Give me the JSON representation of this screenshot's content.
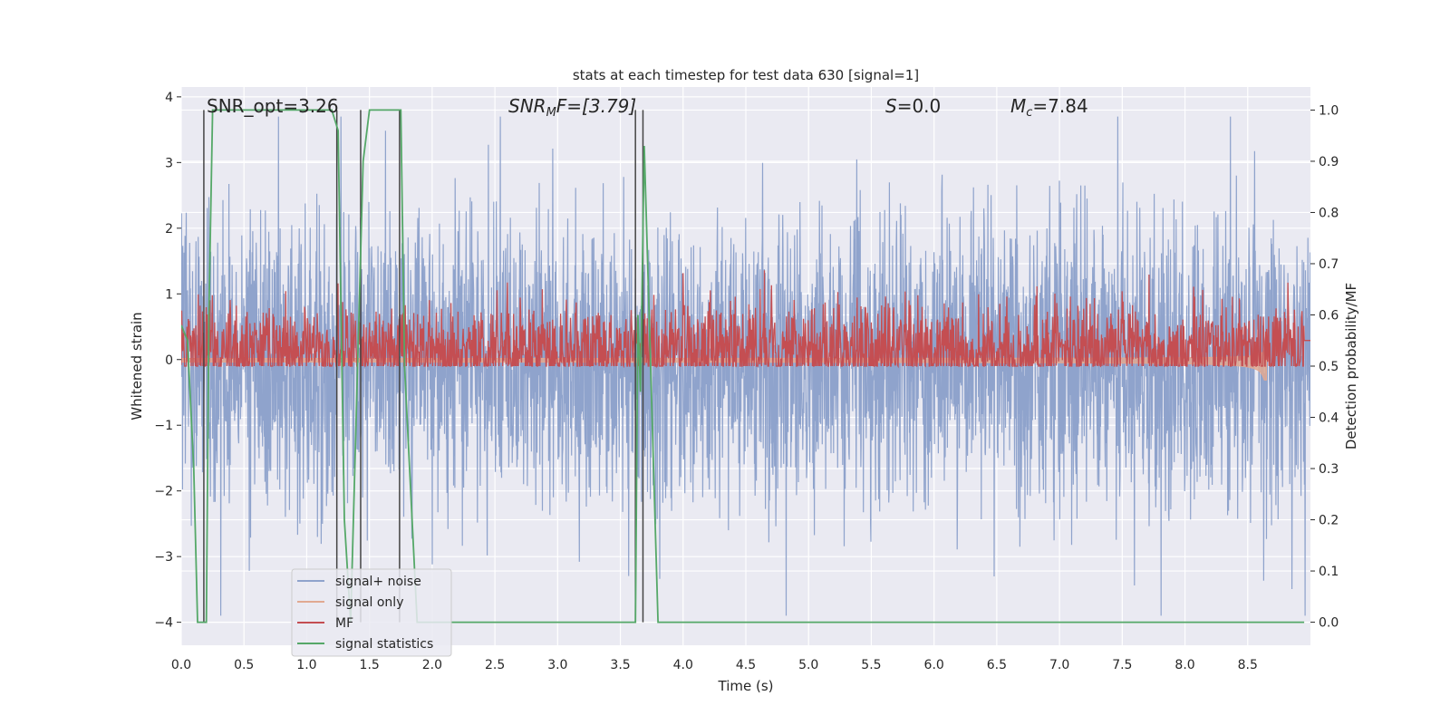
{
  "chart_data": {
    "type": "line",
    "title": "stats at each timestep for test data 630 [signal=1]",
    "xlabel": "Time (s)",
    "ylabel": "Whitened strain",
    "y2label": "Detection probability/MF",
    "xlim": [
      0.0,
      9.0
    ],
    "ylim": [
      -4.35,
      4.15
    ],
    "y2lim": [
      -0.045,
      1.045
    ],
    "xticks": [
      "0.0",
      "0.5",
      "1.0",
      "1.5",
      "2.0",
      "2.5",
      "3.0",
      "3.5",
      "4.0",
      "4.5",
      "5.0",
      "5.5",
      "6.0",
      "6.5",
      "7.0",
      "7.5",
      "8.0",
      "8.5"
    ],
    "yticks": [
      "4",
      "3",
      "2",
      "1",
      "0",
      "−1",
      "−2",
      "−3",
      "−4"
    ],
    "y2ticks": [
      "1.0",
      "0.9",
      "0.8",
      "0.7",
      "0.6",
      "0.5",
      "0.4",
      "0.3",
      "0.2",
      "0.1",
      "0.0"
    ],
    "grid": true,
    "legend_position": "lower-left",
    "annotations": {
      "snr_opt": "SNR_opt=3.26",
      "snr_mf_base": "SNR",
      "snr_mf_sub": "M",
      "snr_mf_rest": "F=[3.79]",
      "s_italic": "S",
      "s_rest": "=0.0",
      "mc_base": "M",
      "mc_sub": "c",
      "mc_rest": "=7.84"
    },
    "series": [
      {
        "name": "signal+ noise",
        "color": "#8fa3cc",
        "envelope_typical": [
          -1.6,
          1.6
        ],
        "extremes": [
          -3.9,
          3.7
        ]
      },
      {
        "name": "signal only",
        "color": "#e1a992",
        "peak_time": 8.65,
        "peak_amplitude": 0.45
      },
      {
        "name": "MF",
        "color": "#c44e52",
        "range": [
          0.0,
          0.9
        ]
      },
      {
        "name": "signal statistics",
        "color": "#55a868",
        "x": [
          0.0,
          0.05,
          0.1,
          0.13,
          0.2,
          0.22,
          0.25,
          1.2,
          1.25,
          1.3,
          1.35,
          1.45,
          1.5,
          1.75,
          1.78,
          1.88,
          3.62,
          3.64,
          3.66,
          3.69,
          3.8,
          8.95
        ],
        "y": [
          0.58,
          0.55,
          0.3,
          0.0,
          0.0,
          0.6,
          1.0,
          1.0,
          0.96,
          0.2,
          0.0,
          0.9,
          1.0,
          1.0,
          0.5,
          0.0,
          0.0,
          0.6,
          0.45,
          0.93,
          0.0,
          0.0
        ]
      }
    ],
    "vertical_markers": [
      0.18,
      1.24,
      1.43,
      1.74,
      3.62,
      3.68
    ]
  }
}
